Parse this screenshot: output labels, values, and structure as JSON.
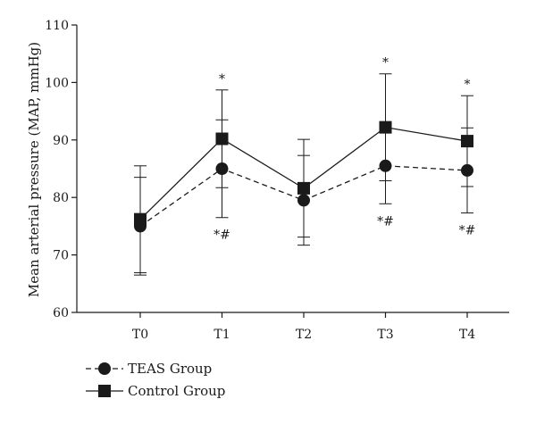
{
  "chart_data": {
    "type": "line",
    "title": "",
    "xlabel": "",
    "ylabel": "Mean arterial pressure (MAP, mmHg)",
    "categories": [
      "T0",
      "T1",
      "T2",
      "T3",
      "T4"
    ],
    "ylim": [
      60,
      110
    ],
    "yticks": [
      60,
      70,
      80,
      90,
      100,
      110
    ],
    "grid": false,
    "legend_position": "bottom-left",
    "series": [
      {
        "name": "TEAS Group",
        "marker": "circle",
        "line_style": "dashed",
        "values": [
          75.0,
          85.0,
          79.5,
          85.5,
          84.7
        ],
        "error": [
          8.5,
          8.5,
          7.8,
          6.6,
          7.4
        ]
      },
      {
        "name": "Control Group",
        "marker": "square",
        "line_style": "solid",
        "values": [
          76.2,
          90.2,
          81.6,
          92.2,
          89.8
        ],
        "error": [
          9.3,
          8.5,
          8.5,
          9.3,
          7.9
        ]
      }
    ],
    "annotations": [
      {
        "category": "T1",
        "series": "Control Group",
        "text": "*"
      },
      {
        "category": "T3",
        "series": "Control Group",
        "text": "*"
      },
      {
        "category": "T4",
        "series": "Control Group",
        "text": "*"
      },
      {
        "category": "T1",
        "series": "TEAS Group",
        "text": "*#"
      },
      {
        "category": "T3",
        "series": "TEAS Group",
        "text": "*#"
      },
      {
        "category": "T4",
        "series": "TEAS Group",
        "text": "*#"
      }
    ]
  }
}
